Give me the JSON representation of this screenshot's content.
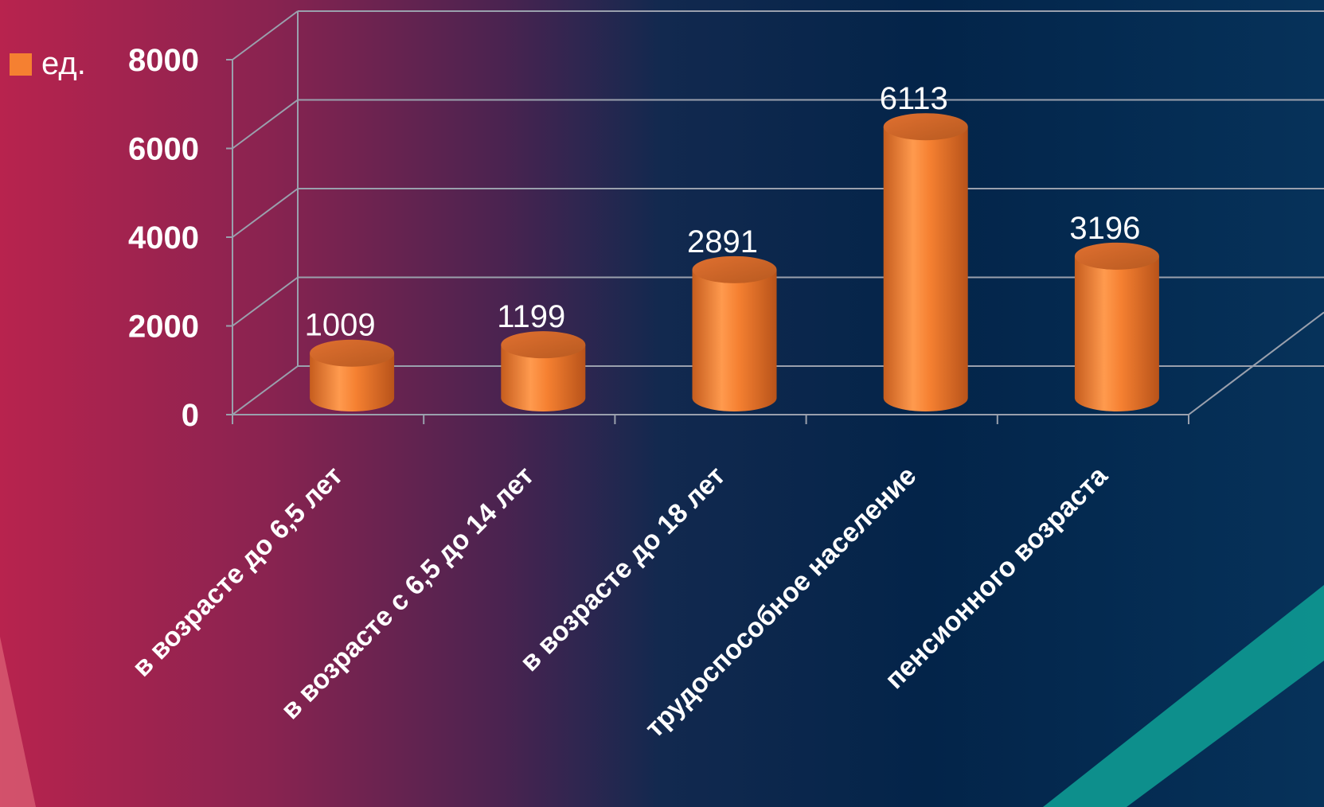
{
  "colors": {
    "bar": "#f58031",
    "bar_dark": "#b8531a",
    "bar_light": "#ffa45c",
    "grid": "#9aa0ad",
    "text": "#ffffff",
    "accent_teal": "#0e9a92"
  },
  "legend": {
    "label": "ед.",
    "position": "top-left"
  },
  "chart_data": {
    "type": "bar",
    "style": "3d-cylinder",
    "categories": [
      "в возрасте до 6,5 лет",
      "в возрасте с 6,5 до 14 лет",
      "в возрасте до 18 лет",
      "трудоспособное население",
      "пенсионного возраста"
    ],
    "series": [
      {
        "name": "ед.",
        "values": [
          1009,
          1199,
          2891,
          6113,
          3196
        ]
      }
    ],
    "data_labels": [
      "1009",
      "1199",
      "2891",
      "6113",
      "3196"
    ],
    "y_ticks": [
      "0",
      "2000",
      "4000",
      "6000",
      "8000"
    ],
    "ylim": [
      0,
      8000
    ],
    "grid": true
  }
}
